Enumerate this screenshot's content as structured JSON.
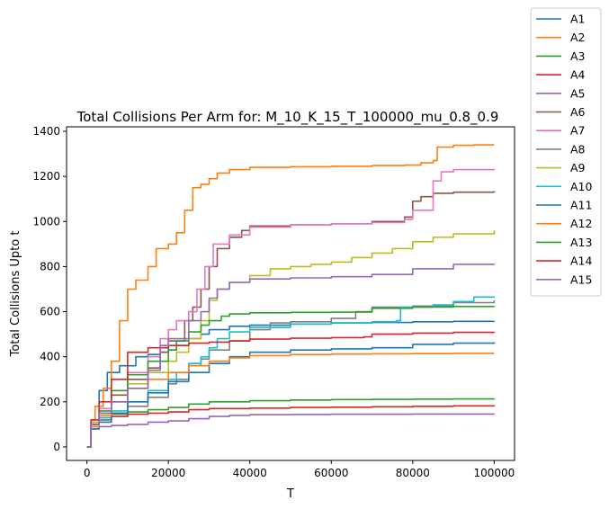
{
  "chart_data": {
    "type": "line",
    "title": "Total Collisions Per Arm for: M_10_K_15_T_100000_mu_0.8_0.9",
    "xlabel": "T",
    "ylabel": "Total Collisions Upto t",
    "xlim": [
      -5000,
      105000
    ],
    "ylim": [
      -60,
      1420
    ],
    "xticks": [
      0,
      20000,
      40000,
      60000,
      80000,
      100000
    ],
    "xtick_labels": [
      "0",
      "20000",
      "40000",
      "60000",
      "80000",
      "100000"
    ],
    "yticks": [
      0,
      200,
      400,
      600,
      800,
      1000,
      1200,
      1400
    ],
    "ytick_labels": [
      "0",
      "200",
      "400",
      "600",
      "800",
      "1000",
      "1200",
      "1400"
    ],
    "grid": false,
    "legend_position": "outside-top-right",
    "series": [
      {
        "name": "A1",
        "color": "#1f77b4",
        "x": [
          0,
          1000,
          3000,
          5000,
          8000,
          12000,
          15000,
          18000,
          20000,
          22000,
          25000,
          28000,
          30000,
          35000,
          40000,
          50000,
          60000,
          70000,
          80000,
          90000,
          100000
        ],
        "y": [
          0,
          100,
          250,
          330,
          360,
          400,
          410,
          420,
          430,
          450,
          480,
          500,
          520,
          535,
          540,
          545,
          550,
          552,
          555,
          557,
          558
        ]
      },
      {
        "name": "A2",
        "color": "#ff7f0e",
        "x": [
          0,
          1000,
          2000,
          4000,
          6000,
          8000,
          10000,
          12000,
          15000,
          17000,
          20000,
          22000,
          24000,
          26000,
          28000,
          30000,
          32000,
          35000,
          40000,
          50000,
          60000,
          70000,
          78000,
          82000,
          85000,
          86000,
          90000,
          95000,
          100000
        ],
        "y": [
          0,
          120,
          180,
          260,
          380,
          560,
          700,
          740,
          800,
          880,
          900,
          950,
          1050,
          1150,
          1165,
          1190,
          1215,
          1230,
          1240,
          1243,
          1245,
          1248,
          1250,
          1260,
          1270,
          1330,
          1338,
          1340,
          1340
        ]
      },
      {
        "name": "A3",
        "color": "#2ca02c",
        "x": [
          0,
          1000,
          3000,
          6000,
          10000,
          15000,
          20000,
          25000,
          30000,
          40000,
          50000,
          60000,
          70000,
          80000,
          90000,
          100000
        ],
        "y": [
          0,
          110,
          130,
          145,
          155,
          165,
          175,
          190,
          200,
          205,
          208,
          210,
          211,
          212,
          213,
          215
        ]
      },
      {
        "name": "A4",
        "color": "#d62728",
        "x": [
          0,
          1000,
          3000,
          6000,
          10000,
          15000,
          20000,
          25000,
          30000,
          40000,
          50000,
          60000,
          70000,
          80000,
          90000,
          100000
        ],
        "y": [
          0,
          100,
          120,
          135,
          145,
          150,
          155,
          165,
          170,
          172,
          175,
          176,
          178,
          180,
          182,
          185
        ]
      },
      {
        "name": "A5",
        "color": "#9467bd",
        "x": [
          0,
          1000,
          3000,
          6000,
          10000,
          15000,
          20000,
          25000,
          30000,
          35000,
          40000,
          50000,
          60000,
          70000,
          80000,
          90000,
          100000
        ],
        "y": [
          0,
          80,
          90,
          95,
          100,
          110,
          115,
          125,
          135,
          140,
          143,
          144,
          145,
          145,
          146,
          146,
          147
        ]
      },
      {
        "name": "A6",
        "color": "#8c564b",
        "x": [
          0,
          1000,
          3000,
          6000,
          10000,
          15000,
          18000,
          20000,
          24000,
          26000,
          28000,
          30000,
          32000,
          35000,
          38000,
          40000,
          50000,
          60000,
          70000,
          78000,
          80000,
          82000,
          85000,
          90000,
          100000
        ],
        "y": [
          0,
          100,
          150,
          230,
          300,
          350,
          420,
          470,
          560,
          620,
          700,
          800,
          880,
          930,
          960,
          980,
          985,
          990,
          1000,
          1020,
          1090,
          1110,
          1125,
          1130,
          1135
        ]
      },
      {
        "name": "A7",
        "color": "#e377c2",
        "x": [
          0,
          1000,
          3000,
          6000,
          10000,
          15000,
          18000,
          20000,
          22000,
          25000,
          27000,
          29000,
          31000,
          35000,
          40000,
          50000,
          60000,
          70000,
          78000,
          80000,
          85000,
          87000,
          90000,
          100000
        ],
        "y": [
          0,
          110,
          170,
          250,
          330,
          400,
          480,
          520,
          560,
          600,
          700,
          800,
          900,
          940,
          975,
          985,
          990,
          995,
          1010,
          1050,
          1180,
          1220,
          1230,
          1233
        ]
      },
      {
        "name": "A8",
        "color": "#7f7f7f",
        "x": [
          0,
          1000,
          3000,
          6000,
          10000,
          15000,
          20000,
          22000,
          25000,
          28000,
          30000,
          35000,
          40000,
          45000,
          50000,
          60000,
          66000,
          70000,
          80000,
          90000,
          100000
        ],
        "y": [
          0,
          90,
          120,
          150,
          180,
          220,
          280,
          300,
          360,
          390,
          430,
          470,
          520,
          550,
          555,
          570,
          600,
          620,
          625,
          640,
          650
        ]
      },
      {
        "name": "A9",
        "color": "#bcbd22",
        "x": [
          0,
          1000,
          3000,
          6000,
          10000,
          15000,
          20000,
          22000,
          25000,
          28000,
          30000,
          32000,
          35000,
          40000,
          45000,
          50000,
          55000,
          60000,
          65000,
          70000,
          75000,
          80000,
          85000,
          90000,
          100000
        ],
        "y": [
          0,
          110,
          150,
          200,
          280,
          330,
          380,
          420,
          480,
          560,
          650,
          700,
          730,
          760,
          790,
          800,
          810,
          820,
          840,
          860,
          880,
          910,
          930,
          945,
          960
        ]
      },
      {
        "name": "A10",
        "color": "#17becf",
        "x": [
          0,
          1000,
          3000,
          6000,
          10000,
          15000,
          20000,
          22000,
          25000,
          28000,
          30000,
          32000,
          35000,
          40000,
          50000,
          60000,
          70000,
          76000,
          77000,
          85000,
          90000,
          95000,
          100000
        ],
        "y": [
          0,
          100,
          130,
          160,
          200,
          250,
          300,
          330,
          370,
          400,
          440,
          480,
          510,
          530,
          545,
          550,
          555,
          560,
          620,
          630,
          645,
          665,
          668
        ]
      },
      {
        "name": "A11",
        "color": "#1f77b4",
        "x": [
          0,
          1000,
          3000,
          6000,
          10000,
          15000,
          20000,
          25000,
          30000,
          35000,
          40000,
          50000,
          60000,
          70000,
          80000,
          90000,
          100000
        ],
        "y": [
          0,
          80,
          110,
          150,
          200,
          240,
          290,
          330,
          370,
          400,
          420,
          430,
          435,
          440,
          455,
          460,
          465
        ]
      },
      {
        "name": "A12",
        "color": "#ff7f0e",
        "x": [
          0,
          1000,
          3000,
          6000,
          10000,
          15000,
          20000,
          25000,
          30000,
          35000,
          40000,
          50000,
          60000,
          70000,
          80000,
          90000,
          100000
        ],
        "y": [
          0,
          90,
          140,
          200,
          260,
          300,
          330,
          360,
          380,
          395,
          405,
          410,
          412,
          413,
          414,
          415,
          415
        ]
      },
      {
        "name": "A13",
        "color": "#2ca02c",
        "x": [
          0,
          1000,
          3000,
          6000,
          10000,
          15000,
          20000,
          22000,
          25000,
          28000,
          30000,
          33000,
          35000,
          40000,
          50000,
          60000,
          70000,
          80000,
          90000,
          100000
        ],
        "y": [
          0,
          100,
          160,
          250,
          320,
          380,
          430,
          470,
          510,
          540,
          560,
          580,
          590,
          595,
          597,
          598,
          615,
          620,
          623,
          625
        ]
      },
      {
        "name": "A14",
        "color": "#d62728",
        "x": [
          0,
          1000,
          3000,
          6000,
          10000,
          15000,
          20000,
          25000,
          30000,
          35000,
          40000,
          50000,
          60000,
          68000,
          70000,
          80000,
          90000,
          100000
        ],
        "y": [
          0,
          120,
          200,
          300,
          420,
          440,
          450,
          460,
          465,
          470,
          478,
          482,
          485,
          488,
          500,
          505,
          508,
          510
        ]
      },
      {
        "name": "A15",
        "color": "#9467bd",
        "x": [
          0,
          1000,
          3000,
          6000,
          10000,
          15000,
          18000,
          20000,
          25000,
          28000,
          30000,
          32000,
          35000,
          40000,
          50000,
          60000,
          70000,
          80000,
          90000,
          100000
        ],
        "y": [
          0,
          100,
          150,
          200,
          260,
          340,
          450,
          480,
          560,
          600,
          660,
          700,
          730,
          745,
          750,
          755,
          765,
          790,
          810,
          812
        ]
      }
    ]
  }
}
